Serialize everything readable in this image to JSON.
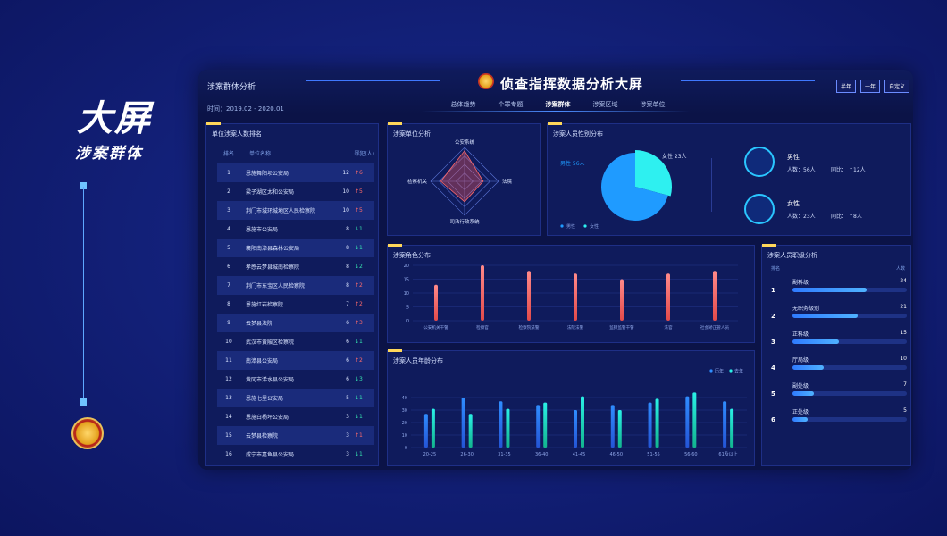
{
  "promo": {
    "title": "大屏",
    "subtitle": "涉案群体"
  },
  "header": {
    "section": "涉案群体分析",
    "time": "时间：2019.02 - 2020.01",
    "title": "侦查指挥数据分析大屏",
    "tabs": [
      {
        "label": "总体趋势",
        "active": false
      },
      {
        "label": "个罪专题",
        "active": false
      },
      {
        "label": "涉案群体",
        "active": true
      },
      {
        "label": "涉案区域",
        "active": false
      },
      {
        "label": "涉案单位",
        "active": false
      }
    ],
    "buttons": [
      "半年",
      "一年",
      "自定义"
    ]
  },
  "ranking": {
    "title": "单位涉案人数排名",
    "columns": [
      "排名",
      "单位名称",
      "罪犯(人)"
    ],
    "rows": [
      {
        "no": "1",
        "name": "恩施舞阳坝公安局",
        "num": "12",
        "chg": "6",
        "dir": "up"
      },
      {
        "no": "2",
        "name": "梁子湖区太和公安局",
        "num": "10",
        "chg": "5",
        "dir": "up"
      },
      {
        "no": "3",
        "name": "荆门市城环城地区人民检察院",
        "num": "10",
        "chg": "5",
        "dir": "up"
      },
      {
        "no": "4",
        "name": "恩施市公安局",
        "num": "8",
        "chg": "1",
        "dir": "down"
      },
      {
        "no": "5",
        "name": "襄阳南漳县森林公安局",
        "num": "8",
        "chg": "1",
        "dir": "down"
      },
      {
        "no": "6",
        "name": "孝感云梦县城南检察院",
        "num": "8",
        "chg": "2",
        "dir": "down"
      },
      {
        "no": "7",
        "name": "荆门市东宝区人民检察院",
        "num": "8",
        "chg": "2",
        "dir": "up"
      },
      {
        "no": "8",
        "name": "恩施红岩检察院",
        "num": "7",
        "chg": "2",
        "dir": "up"
      },
      {
        "no": "9",
        "name": "云梦县法院",
        "num": "6",
        "chg": "3",
        "dir": "up"
      },
      {
        "no": "10",
        "name": "武汉市黄陂区检察院",
        "num": "6",
        "chg": "1",
        "dir": "down"
      },
      {
        "no": "11",
        "name": "南漳县公安局",
        "num": "6",
        "chg": "2",
        "dir": "up"
      },
      {
        "no": "12",
        "name": "黄冈市浠水县公安局",
        "num": "6",
        "chg": "3",
        "dir": "down"
      },
      {
        "no": "13",
        "name": "恩施七里公安局",
        "num": "5",
        "chg": "1",
        "dir": "down"
      },
      {
        "no": "14",
        "name": "恩施白杨坪公安局",
        "num": "3",
        "chg": "1",
        "dir": "down"
      },
      {
        "no": "15",
        "name": "云梦县检察院",
        "num": "3",
        "chg": "1",
        "dir": "up"
      },
      {
        "no": "16",
        "name": "咸宁市嘉鱼县公安局",
        "num": "3",
        "chg": "1",
        "dir": "down"
      }
    ]
  },
  "gender": {
    "title": "涉案人员性别分布",
    "legend": [
      "男性",
      "女性"
    ],
    "male": {
      "label": "男性",
      "count": "人数：56人",
      "yoy_label": "同比：",
      "yoy": "12人"
    },
    "female": {
      "label": "女性",
      "count": "人数：23人",
      "yoy_label": "同比：",
      "yoy": "8人"
    },
    "pie_labels": {
      "male": "男性  56人",
      "female": "女性  23人"
    }
  },
  "level": {
    "title": "涉案人员职级分析",
    "head_rank": "排名",
    "head_count": "人数",
    "rows": [
      {
        "rank": "1",
        "name": "副科级",
        "value": 24
      },
      {
        "rank": "2",
        "name": "无职务级别",
        "value": 21
      },
      {
        "rank": "3",
        "name": "正科级",
        "value": 15
      },
      {
        "rank": "4",
        "name": "厅局级",
        "value": 10
      },
      {
        "rank": "5",
        "name": "副处级",
        "value": 7
      },
      {
        "rank": "6",
        "name": "正处级",
        "value": 5
      }
    ]
  },
  "colors": {
    "accent": "#ffd75a",
    "male": "#1f9bff",
    "female": "#2ef0f0",
    "up": "#ff6b6b",
    "down": "#36e3b0"
  },
  "chart_data": [
    {
      "type": "radar",
      "title": "涉案单位分析",
      "axes": [
        "公安系统",
        "法院",
        "司法行政系统",
        "检察机关"
      ],
      "values": [
        0.9,
        0.55,
        0.6,
        0.7
      ]
    },
    {
      "type": "pie",
      "title": "涉案人员性别分布",
      "categories": [
        "男性",
        "女性"
      ],
      "values": [
        56,
        23
      ],
      "legend": "bottom-left"
    },
    {
      "type": "bar",
      "title": "涉案角色分布",
      "categories": [
        "公安机关干警",
        "检察官",
        "检察院法警",
        "法院法警",
        "监狱监警干警",
        "法官",
        "社会矫正管人员"
      ],
      "values": [
        13,
        20,
        18,
        17,
        15,
        17,
        18
      ],
      "ylim": [
        0,
        20
      ],
      "yticks": [
        0,
        5,
        10,
        15,
        20
      ]
    },
    {
      "type": "bar",
      "title": "涉案人员年龄分布",
      "categories": [
        "20-25",
        "26-30",
        "31-35",
        "36-40",
        "41-45",
        "46-50",
        "51-55",
        "56-60",
        "61及以上"
      ],
      "series": [
        {
          "name": "历年",
          "values": [
            27,
            40,
            37,
            34,
            30,
            34,
            36,
            41,
            37
          ]
        },
        {
          "name": "去年",
          "values": [
            31,
            27,
            31,
            36,
            41,
            30,
            39,
            44,
            31
          ]
        }
      ],
      "ylim": [
        0,
        50
      ],
      "yticks": [
        0,
        10,
        20,
        30,
        40
      ],
      "legend": "top-right"
    }
  ]
}
